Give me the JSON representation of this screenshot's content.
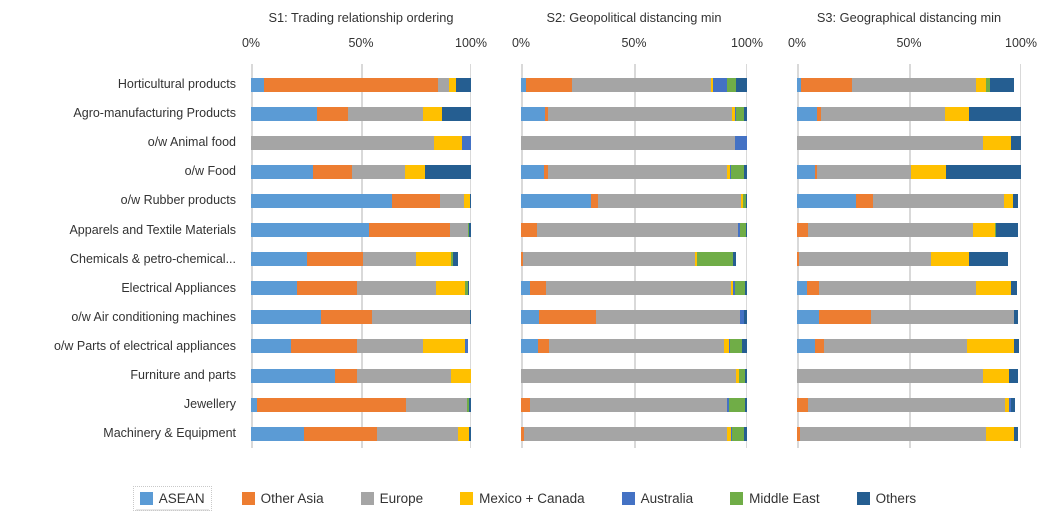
{
  "chart_data": {
    "type": "bar",
    "orientation": "horizontal",
    "stacked": "percent",
    "grid": true,
    "legend_position": "bottom",
    "xlim": [
      0,
      100
    ],
    "xticks": [
      "0%",
      "50%",
      "100%"
    ],
    "xtick_values": [
      0,
      50,
      100
    ],
    "categories": [
      "Horticultural products",
      "Agro-manufacturing Products",
      "o/w Animal food",
      "o/w Food",
      "o/w Rubber products",
      "Apparels and Textile Materials",
      "Chemicals & petro-chemical...",
      "Electrical Appliances",
      "o/w Air conditioning machines",
      "o/w Parts of electrical appliances",
      "Furniture and parts",
      "Jewellery",
      "Machinery & Equipment"
    ],
    "series_names": [
      "ASEAN",
      "Other Asia",
      "Europe",
      "Mexico + Canada",
      "Australia",
      "Middle East",
      "Others"
    ],
    "series_colors": [
      "#5B9BD5",
      "#ED7D31",
      "#A5A5A5",
      "#FFC000",
      "#4472C4",
      "#70AD47",
      "#255E91"
    ],
    "panels": [
      {
        "title": "S1: Trading relationship ordering",
        "rows": [
          [
            6,
            79,
            5,
            3,
            0,
            0,
            7
          ],
          [
            30,
            14,
            34,
            9,
            0,
            0,
            13
          ],
          [
            0,
            0,
            83,
            13,
            4,
            0,
            0
          ],
          [
            28,
            18,
            24,
            9,
            0,
            0,
            21
          ],
          [
            64,
            22,
            11,
            2.5,
            0,
            0,
            0.5
          ],
          [
            53.5,
            37,
            8,
            0,
            0,
            0.7,
            0.8
          ],
          [
            25.5,
            25.5,
            24,
            16,
            0,
            1,
            2
          ],
          [
            21,
            27,
            36,
            13.5,
            0,
            1,
            0.5
          ],
          [
            32,
            23,
            44.5,
            0,
            0,
            0,
            0.5
          ],
          [
            18,
            30,
            30,
            19.5,
            1,
            0,
            0
          ],
          [
            38,
            10,
            43,
            9,
            0,
            0,
            0
          ],
          [
            2.5,
            68,
            27.5,
            0,
            0,
            1,
            1
          ],
          [
            24,
            33.5,
            36.5,
            5,
            0,
            0,
            1
          ]
        ]
      },
      {
        "title": "S2: Geopolitical distancing min",
        "rows": [
          [
            2,
            20.5,
            61.5,
            1,
            6,
            4,
            5
          ],
          [
            10.5,
            1.5,
            81.5,
            1,
            0.5,
            3.5,
            1.5
          ],
          [
            0,
            0,
            94.5,
            0,
            5.5,
            0,
            0
          ],
          [
            10,
            2,
            79,
            1.5,
            0.5,
            5.5,
            1.5
          ],
          [
            31,
            3,
            63.5,
            0.7,
            0,
            1.2,
            0.6
          ],
          [
            0,
            7,
            89,
            0,
            1,
            2.5,
            0.5
          ],
          [
            0,
            1,
            76,
            1,
            0,
            16,
            1
          ],
          [
            4,
            7,
            82,
            1,
            0.5,
            4.5,
            1
          ],
          [
            8,
            25,
            64,
            0,
            1.5,
            0,
            1.5
          ],
          [
            7.5,
            5,
            77.5,
            2,
            0.5,
            5.5,
            2
          ],
          [
            0,
            0,
            95,
            1.3,
            0,
            2.7,
            1
          ],
          [
            0,
            4,
            87,
            0,
            1.2,
            7,
            0.8
          ],
          [
            0,
            1.2,
            90,
            1.8,
            0.5,
            5.3,
            1.2
          ]
        ]
      },
      {
        "title": "S3: Geographical distancing min",
        "rows": [
          [
            2,
            22.5,
            55.5,
            4.5,
            0,
            1.5,
            11
          ],
          [
            9,
            1.5,
            55.5,
            11,
            0,
            0,
            23
          ],
          [
            0,
            0,
            83,
            12.5,
            0,
            0,
            4.5
          ],
          [
            8,
            1,
            42,
            15.5,
            0,
            0,
            33.5
          ],
          [
            26.5,
            7.5,
            58.5,
            4,
            0,
            0,
            2
          ],
          [
            0,
            5,
            73.5,
            10,
            0,
            0.5,
            9.5
          ],
          [
            0,
            1,
            59,
            17,
            0,
            0,
            17
          ],
          [
            4.5,
            5.5,
            70,
            15.5,
            0,
            0,
            2.5
          ],
          [
            10,
            23,
            64,
            0,
            0,
            0,
            1.5
          ],
          [
            8,
            4,
            64,
            21,
            0,
            0,
            2
          ],
          [
            0,
            0,
            83,
            11.5,
            0,
            0,
            4
          ],
          [
            0,
            5,
            88,
            1.5,
            1,
            0,
            2
          ],
          [
            0,
            1.5,
            83,
            12.5,
            0,
            0,
            1.5
          ]
        ]
      }
    ]
  },
  "legend": {
    "items": [
      {
        "label": "ASEAN",
        "color": "#5B9BD5",
        "selected": true
      },
      {
        "label": "Other Asia",
        "color": "#ED7D31",
        "selected": false
      },
      {
        "label": "Europe",
        "color": "#A5A5A5",
        "selected": false
      },
      {
        "label": "Mexico + Canada",
        "color": "#FFC000",
        "selected": false
      },
      {
        "label": "Australia",
        "color": "#4472C4",
        "selected": false
      },
      {
        "label": "Middle East",
        "color": "#70AD47",
        "selected": false
      },
      {
        "label": "Others",
        "color": "#255E91",
        "selected": false
      }
    ]
  },
  "layout_colors": {
    "gridline": "#d9d9d9",
    "text": "#333333",
    "background": "#ffffff"
  }
}
